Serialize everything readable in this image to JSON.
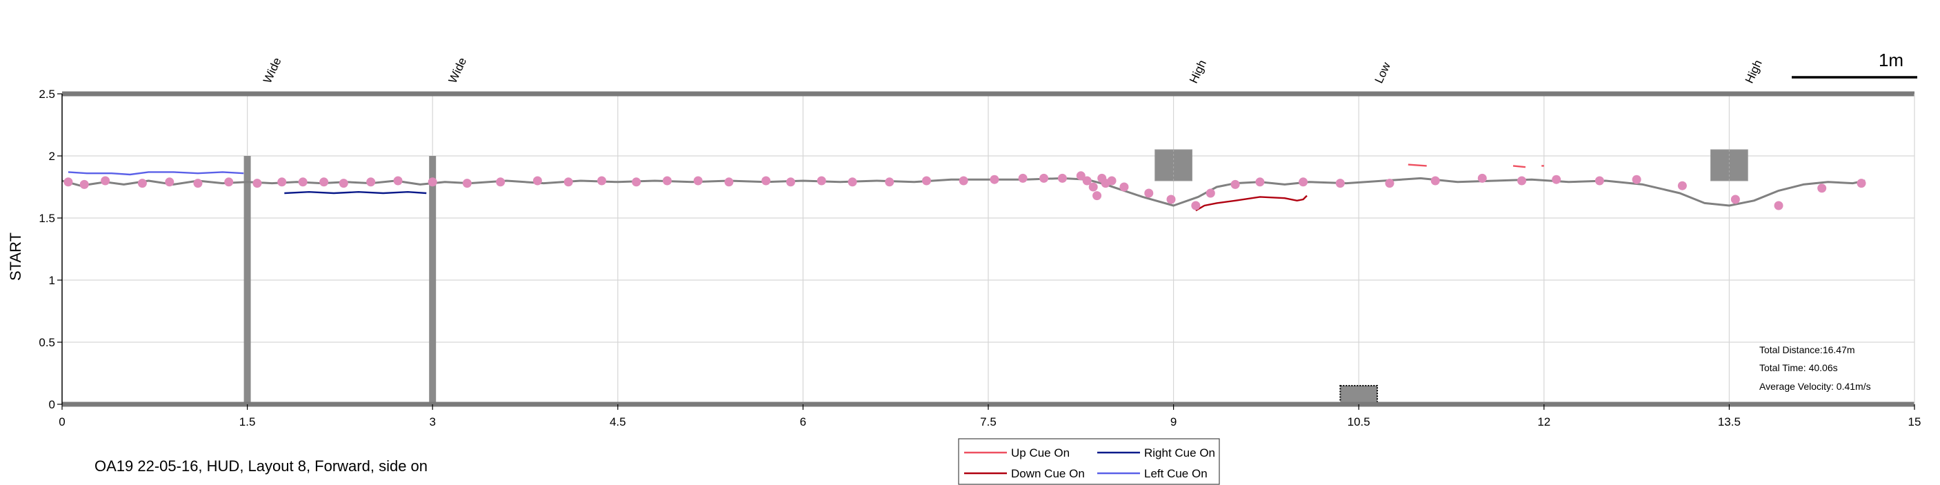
{
  "chart_data": {
    "type": "line",
    "xlim": [
      0,
      15
    ],
    "ylim": [
      0,
      2.5
    ],
    "xticks": [
      0,
      1.5,
      3,
      4.5,
      6,
      7.5,
      9,
      10.5,
      12,
      13.5,
      15
    ],
    "xtick_labels": [
      "0",
      "1.5",
      "3",
      "4.5",
      "6",
      "7.5",
      "9",
      "10.5",
      "12",
      "13.5",
      "15"
    ],
    "yticks": [
      0,
      0.5,
      1,
      1.5,
      2,
      2.5
    ],
    "ytick_labels": [
      "0",
      "0.5",
      "1",
      "1.5",
      "2",
      "2.5"
    ],
    "ylabel": "START",
    "xlabel": "",
    "grid": true,
    "scale_bar_label": "1m",
    "caption": "OA19 22-05-16, HUD, Layout 8, Forward, side on",
    "stats": {
      "distance": "Total Distance:16.47m",
      "time": "Total Time: 40.06s",
      "velocity": "Average Velocity: 0.41m/s"
    },
    "obstacles": [
      {
        "label": "Wide",
        "x": 1.5,
        "kind": "pole",
        "y_from": 0,
        "y_to": 2
      },
      {
        "label": "Wide",
        "x": 3.0,
        "kind": "pole",
        "y_from": 0,
        "y_to": 2
      },
      {
        "label": "High",
        "x": 9.0,
        "kind": "box",
        "x_from": 8.85,
        "x_to": 9.15,
        "y_from": 1.8,
        "y_to": 2.05
      },
      {
        "label": "Low",
        "x": 10.5,
        "kind": "box-dotted",
        "x_from": 10.35,
        "x_to": 10.65,
        "y_from": 0,
        "y_to": 0.15
      },
      {
        "label": "High",
        "x": 13.5,
        "kind": "box",
        "x_from": 13.35,
        "x_to": 13.65,
        "y_from": 1.8,
        "y_to": 2.05
      }
    ],
    "path": {
      "color": "#808080",
      "x": [
        0,
        0.15,
        0.35,
        0.5,
        0.7,
        0.9,
        1.1,
        1.3,
        1.5,
        1.7,
        1.9,
        2.1,
        2.3,
        2.5,
        2.7,
        2.9,
        3.1,
        3.3,
        3.6,
        3.9,
        4.2,
        4.5,
        4.8,
        5.1,
        5.4,
        5.7,
        6.0,
        6.3,
        6.6,
        6.9,
        7.2,
        7.5,
        7.8,
        8.1,
        8.3,
        8.45,
        8.6,
        8.75,
        9.0,
        9.2,
        9.35,
        9.5,
        9.7,
        9.9,
        10.1,
        10.4,
        10.7,
        11.0,
        11.3,
        11.6,
        11.9,
        12.2,
        12.5,
        12.8,
        13.1,
        13.3,
        13.5,
        13.7,
        13.9,
        14.1,
        14.3,
        14.5,
        14.6
      ],
      "y": [
        1.8,
        1.76,
        1.79,
        1.77,
        1.8,
        1.77,
        1.8,
        1.78,
        1.79,
        1.78,
        1.79,
        1.78,
        1.79,
        1.78,
        1.8,
        1.77,
        1.79,
        1.78,
        1.8,
        1.78,
        1.8,
        1.79,
        1.8,
        1.79,
        1.8,
        1.79,
        1.8,
        1.79,
        1.8,
        1.79,
        1.81,
        1.81,
        1.81,
        1.82,
        1.81,
        1.77,
        1.72,
        1.67,
        1.6,
        1.67,
        1.75,
        1.78,
        1.79,
        1.77,
        1.79,
        1.78,
        1.8,
        1.82,
        1.79,
        1.8,
        1.81,
        1.79,
        1.8,
        1.77,
        1.7,
        1.62,
        1.6,
        1.64,
        1.72,
        1.77,
        1.79,
        1.78,
        1.8
      ]
    },
    "markers": {
      "color": "#df8ab9",
      "x": [
        0.05,
        0.18,
        0.35,
        0.65,
        0.87,
        1.1,
        1.35,
        1.58,
        1.78,
        1.95,
        2.12,
        2.28,
        2.5,
        2.72,
        3.0,
        3.28,
        3.55,
        3.85,
        4.1,
        4.37,
        4.65,
        4.9,
        5.15,
        5.4,
        5.7,
        5.9,
        6.15,
        6.4,
        6.7,
        7.0,
        7.3,
        7.55,
        7.78,
        7.95,
        8.1,
        8.25,
        8.3,
        8.35,
        8.38,
        8.42,
        8.45,
        8.5,
        8.6,
        8.8,
        8.98,
        9.18,
        9.3,
        9.5,
        9.7,
        10.05,
        10.35,
        10.75,
        11.12,
        11.5,
        11.82,
        12.1,
        12.45,
        12.75,
        13.12,
        13.55,
        13.9,
        14.25,
        14.57
      ],
      "y": [
        1.79,
        1.77,
        1.8,
        1.78,
        1.79,
        1.78,
        1.79,
        1.78,
        1.79,
        1.79,
        1.79,
        1.78,
        1.79,
        1.8,
        1.79,
        1.78,
        1.79,
        1.8,
        1.79,
        1.8,
        1.79,
        1.8,
        1.8,
        1.79,
        1.8,
        1.79,
        1.8,
        1.79,
        1.79,
        1.8,
        1.8,
        1.81,
        1.82,
        1.82,
        1.82,
        1.84,
        1.8,
        1.75,
        1.68,
        1.82,
        1.78,
        1.8,
        1.75,
        1.7,
        1.65,
        1.6,
        1.7,
        1.77,
        1.79,
        1.79,
        1.78,
        1.78,
        1.8,
        1.82,
        1.8,
        1.81,
        1.8,
        1.81,
        1.76,
        1.65,
        1.6,
        1.74,
        1.78
      ]
    },
    "cue_series": [
      {
        "name": "Up Cue On",
        "color": "#ee5060",
        "segments": [
          {
            "x": [
              10.9,
              11.05
            ],
            "y": [
              1.93,
              1.92
            ]
          },
          {
            "x": [
              11.75,
              11.85
            ],
            "y": [
              1.92,
              1.91
            ]
          },
          {
            "x": [
              11.98,
              12.0
            ],
            "y": [
              1.92,
              1.92
            ]
          }
        ]
      },
      {
        "name": "Down Cue On",
        "color": "#b00010",
        "segments": [
          {
            "x": [
              9.18,
              9.25,
              9.35,
              9.5,
              9.7,
              9.9,
              10.0,
              10.05,
              10.08
            ],
            "y": [
              1.56,
              1.6,
              1.62,
              1.64,
              1.67,
              1.66,
              1.64,
              1.65,
              1.68
            ]
          }
        ]
      },
      {
        "name": "Right Cue On",
        "color": "#0a1a8a",
        "segments": [
          {
            "x": [
              1.8,
              2.0,
              2.2,
              2.4,
              2.6,
              2.8,
              2.95
            ],
            "y": [
              1.7,
              1.71,
              1.7,
              1.71,
              1.7,
              1.71,
              1.7
            ]
          }
        ]
      },
      {
        "name": "Left Cue On",
        "color": "#5a60e8",
        "segments": [
          {
            "x": [
              0.05,
              0.2,
              0.4,
              0.55,
              0.7,
              0.9,
              1.1,
              1.3,
              1.47
            ],
            "y": [
              1.87,
              1.86,
              1.86,
              1.85,
              1.87,
              1.87,
              1.86,
              1.87,
              1.86
            ]
          }
        ]
      }
    ]
  }
}
